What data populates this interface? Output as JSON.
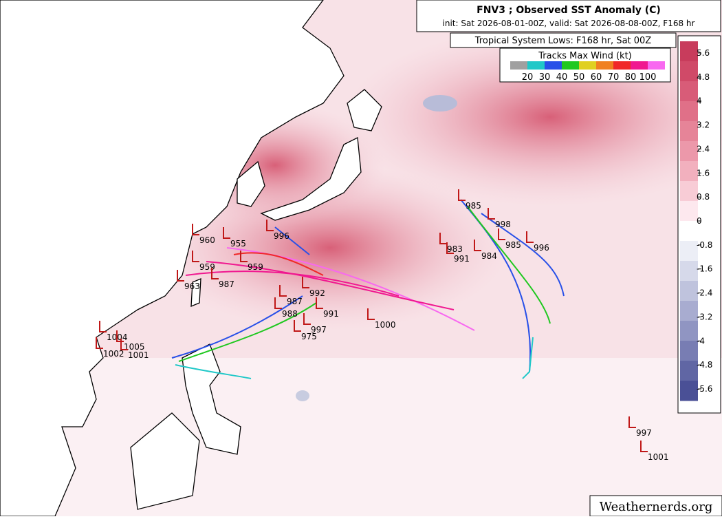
{
  "header": {
    "title": "FNV3 ; Observed SST Anomaly (C)",
    "subtitle": "init: Sat 2026-08-01-00Z, valid: Sat 2026-08-08-00Z, F168 hr",
    "lows_title": "Tropical System Lows: F168 hr, Sat 00Z"
  },
  "wind_legend": {
    "title": "Tracks Max Wind (kt)",
    "colors": [
      "#a0a0a0",
      "#20c8c8",
      "#2850e8",
      "#20c820",
      "#e0d020",
      "#f08020",
      "#f02828",
      "#f01890",
      "#f868f0"
    ],
    "labels": [
      "20",
      "30",
      "40",
      "50",
      "60",
      "70",
      "80",
      "100"
    ]
  },
  "colorbar": {
    "labels": [
      "5.6",
      "4.8",
      "4",
      "3.2",
      "2.4",
      "1.6",
      "0.8",
      "0",
      "-0.8",
      "-1.6",
      "-2.4",
      "-3.2",
      "-4",
      "-4.8",
      "-5.6"
    ]
  },
  "lows": [
    "996",
    "960",
    "955",
    "959",
    "963",
    "987",
    "959",
    "987",
    "992",
    "988",
    "991",
    "997",
    "975",
    "1000",
    "985",
    "983",
    "991",
    "998",
    "984",
    "985",
    "996",
    "997",
    "1001",
    "1005",
    "1001",
    "1002",
    "1004"
  ],
  "watermark": "Weathernerds.org"
}
